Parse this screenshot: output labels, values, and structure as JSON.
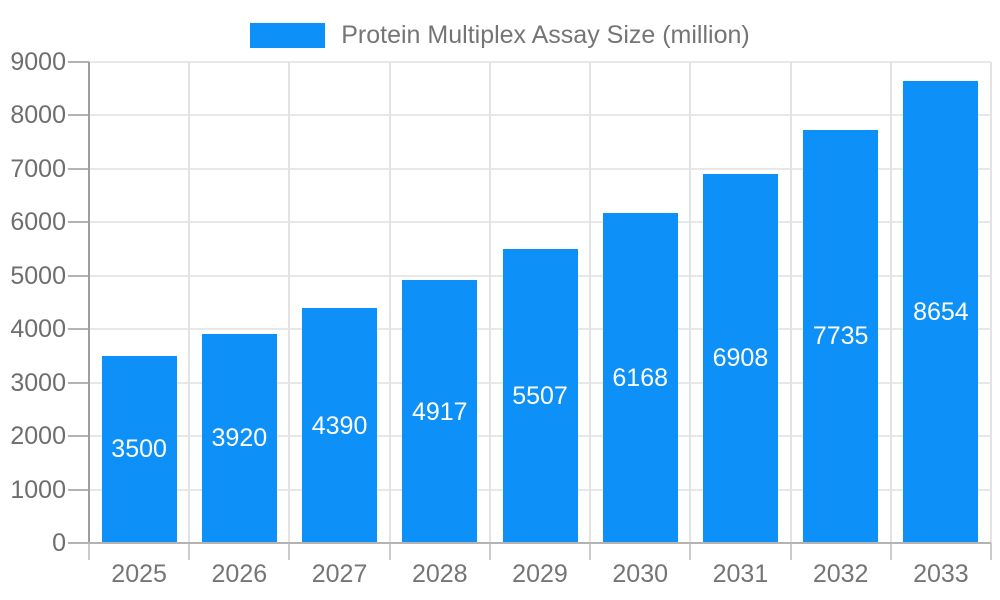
{
  "chart_data": {
    "type": "bar",
    "title": "",
    "legend": "Protein Multiplex Assay Size (million)",
    "legend_position": "top-center",
    "categories": [
      "2025",
      "2026",
      "2027",
      "2028",
      "2029",
      "2030",
      "2031",
      "2032",
      "2033"
    ],
    "values": [
      3500,
      3920,
      4390,
      4917,
      5507,
      6168,
      6908,
      7735,
      8654
    ],
    "xlabel": "",
    "ylabel": "",
    "ylim": [
      0,
      9000
    ],
    "ytick_step": 1000,
    "yticks": [
      0,
      1000,
      2000,
      3000,
      4000,
      5000,
      6000,
      7000,
      8000,
      9000
    ],
    "grid": true,
    "value_labels": "inside-center",
    "colors": {
      "bar": "#0d90f8",
      "value_label": "#ffffff",
      "legend_text": "#757575",
      "axis_text_y": "#6e6e6e",
      "axis_text_x": "#757575",
      "h_grid_line": "#e8e8e8",
      "v_grid_line": "#e3e3e3",
      "axis_line": "#9e9e9e",
      "baseline": "#b3b3b3",
      "y_tick": "#b3b3b3",
      "x_tick": "#cccccc",
      "background": "#ffffff"
    }
  }
}
